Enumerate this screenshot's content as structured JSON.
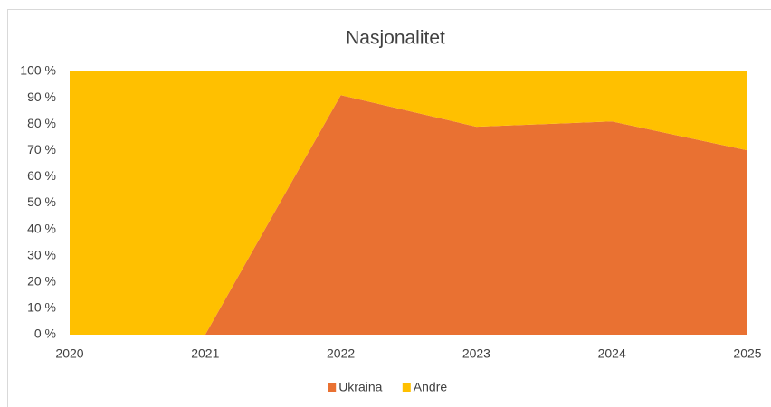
{
  "chart_data": {
    "type": "stacked_area",
    "title": "Nasjonalitet",
    "categories": [
      "2020",
      "2021",
      "2022",
      "2023",
      "2024",
      "2025"
    ],
    "series": [
      {
        "name": "Ukraina",
        "color": "#E97132",
        "values": [
          0,
          0,
          91,
          79,
          81,
          70
        ]
      },
      {
        "name": "Andre",
        "color": "#FFC000",
        "values": [
          100,
          100,
          9,
          21,
          19,
          30
        ]
      }
    ],
    "ylim": [
      0,
      100
    ],
    "yticks": [
      {
        "value": 0,
        "label": "0 %"
      },
      {
        "value": 10,
        "label": "10 %"
      },
      {
        "value": 20,
        "label": "20 %"
      },
      {
        "value": 30,
        "label": "30 %"
      },
      {
        "value": 40,
        "label": "40 %"
      },
      {
        "value": 50,
        "label": "50 %"
      },
      {
        "value": 60,
        "label": "60 %"
      },
      {
        "value": 70,
        "label": "70 %"
      },
      {
        "value": 80,
        "label": "80 %"
      },
      {
        "value": 90,
        "label": "90 %"
      },
      {
        "value": 100,
        "label": "100 %"
      }
    ],
    "grid": false,
    "legend": "bottom"
  }
}
